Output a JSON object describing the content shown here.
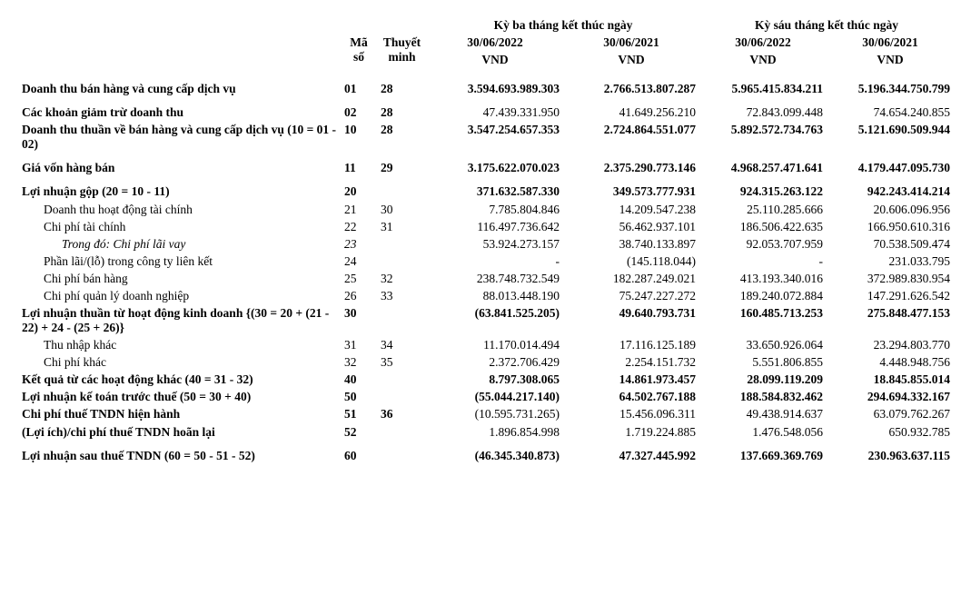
{
  "headers": {
    "col_ms": "Mã số",
    "col_tm": "Thuyết minh",
    "period3_title": "Kỳ ba tháng kết thúc ngày",
    "period6_title": "Kỳ sáu tháng kết thúc ngày",
    "d_2022": "30/06/2022",
    "d_2021": "30/06/2021",
    "unit": "VND"
  },
  "rows": {
    "r01": {
      "label": "Doanh thu bán hàng và cung cấp dịch vụ",
      "ms": "01",
      "tm": "28",
      "q3a": "3.594.693.989.303",
      "q3b": "2.766.513.807.287",
      "q6a": "5.965.415.834.211",
      "q6b": "5.196.344.750.799"
    },
    "r02": {
      "label": "Các khoản giảm trừ doanh thu",
      "ms": "02",
      "tm": "28",
      "q3a": "47.439.331.950",
      "q3b": "41.649.256.210",
      "q6a": "72.843.099.448",
      "q6b": "74.654.240.855"
    },
    "r10": {
      "label": "Doanh thu thuần về bán hàng và cung cấp dịch vụ (10 = 01 - 02)",
      "ms": "10",
      "tm": "28",
      "q3a": "3.547.254.657.353",
      "q3b": "2.724.864.551.077",
      "q6a": "5.892.572.734.763",
      "q6b": "5.121.690.509.944"
    },
    "r11": {
      "label": "Giá vốn hàng bán",
      "ms": "11",
      "tm": "29",
      "q3a": "3.175.622.070.023",
      "q3b": "2.375.290.773.146",
      "q6a": "4.968.257.471.641",
      "q6b": "4.179.447.095.730"
    },
    "r20": {
      "label": "Lợi nhuận gộp (20 = 10 - 11)",
      "ms": "20",
      "tm": "",
      "q3a": "371.632.587.330",
      "q3b": "349.573.777.931",
      "q6a": "924.315.263.122",
      "q6b": "942.243.414.214"
    },
    "r21": {
      "label": "Doanh thu hoạt động tài chính",
      "ms": "21",
      "tm": "30",
      "q3a": "7.785.804.846",
      "q3b": "14.209.547.238",
      "q6a": "25.110.285.666",
      "q6b": "20.606.096.956"
    },
    "r22": {
      "label": "Chi phí tài chính",
      "ms": "22",
      "tm": "31",
      "q3a": "116.497.736.642",
      "q3b": "56.462.937.101",
      "q6a": "186.506.422.635",
      "q6b": "166.950.610.316"
    },
    "r23": {
      "label": "Trong đó: Chi phí lãi vay",
      "ms": "23",
      "tm": "",
      "q3a": "53.924.273.157",
      "q3b": "38.740.133.897",
      "q6a": "92.053.707.959",
      "q6b": "70.538.509.474"
    },
    "r24": {
      "label": "Phần lãi/(lỗ) trong công ty liên kết",
      "ms": "24",
      "tm": "",
      "q3a": "-",
      "q3b": "(145.118.044)",
      "q6a": "-",
      "q6b": "231.033.795"
    },
    "r25": {
      "label": "Chi phí bán hàng",
      "ms": "25",
      "tm": "32",
      "q3a": "238.748.732.549",
      "q3b": "182.287.249.021",
      "q6a": "413.193.340.016",
      "q6b": "372.989.830.954"
    },
    "r26": {
      "label": "Chi phí quản lý doanh nghiệp",
      "ms": "26",
      "tm": "33",
      "q3a": "88.013.448.190",
      "q3b": "75.247.227.272",
      "q6a": "189.240.072.884",
      "q6b": "147.291.626.542"
    },
    "r30": {
      "label": "Lợi nhuận thuần từ hoạt động kinh doanh {(30 = 20 + (21 - 22) + 24 - (25 + 26)}",
      "ms": "30",
      "tm": "",
      "q3a": "(63.841.525.205)",
      "q3b": "49.640.793.731",
      "q6a": "160.485.713.253",
      "q6b": "275.848.477.153"
    },
    "r31": {
      "label": "Thu nhập khác",
      "ms": "31",
      "tm": "34",
      "q3a": "11.170.014.494",
      "q3b": "17.116.125.189",
      "q6a": "33.650.926.064",
      "q6b": "23.294.803.770"
    },
    "r32": {
      "label": "Chi phí khác",
      "ms": "32",
      "tm": "35",
      "q3a": "2.372.706.429",
      "q3b": "2.254.151.732",
      "q6a": "5.551.806.855",
      "q6b": "4.448.948.756"
    },
    "r40": {
      "label": "Kết quả từ các hoạt động khác (40 = 31 - 32)",
      "ms": "40",
      "tm": "",
      "q3a": "8.797.308.065",
      "q3b": "14.861.973.457",
      "q6a": "28.099.119.209",
      "q6b": "18.845.855.014"
    },
    "r50": {
      "label": "Lợi nhuận kế toán trước thuế (50 = 30 + 40)",
      "ms": "50",
      "tm": "",
      "q3a": "(55.044.217.140)",
      "q3b": "64.502.767.188",
      "q6a": "188.584.832.462",
      "q6b": "294.694.332.167"
    },
    "r51": {
      "label": "Chi phí thuế TNDN hiện hành",
      "ms": "51",
      "tm": "36",
      "q3a": "(10.595.731.265)",
      "q3b": "15.456.096.311",
      "q6a": "49.438.914.637",
      "q6b": "63.079.762.267"
    },
    "r52": {
      "label": "(Lợi ích)/chi phí thuế TNDN hoãn lại",
      "ms": "52",
      "tm": "",
      "q3a": "1.896.854.998",
      "q3b": "1.719.224.885",
      "q6a": "1.476.548.056",
      "q6b": "650.932.785"
    },
    "r60": {
      "label": "Lợi nhuận sau thuế TNDN (60 = 50 - 51 - 52)",
      "ms": "60",
      "tm": "",
      "q3a": "(46.345.340.873)",
      "q3b": "47.327.445.992",
      "q6a": "137.669.369.769",
      "q6b": "230.963.637.115"
    }
  }
}
